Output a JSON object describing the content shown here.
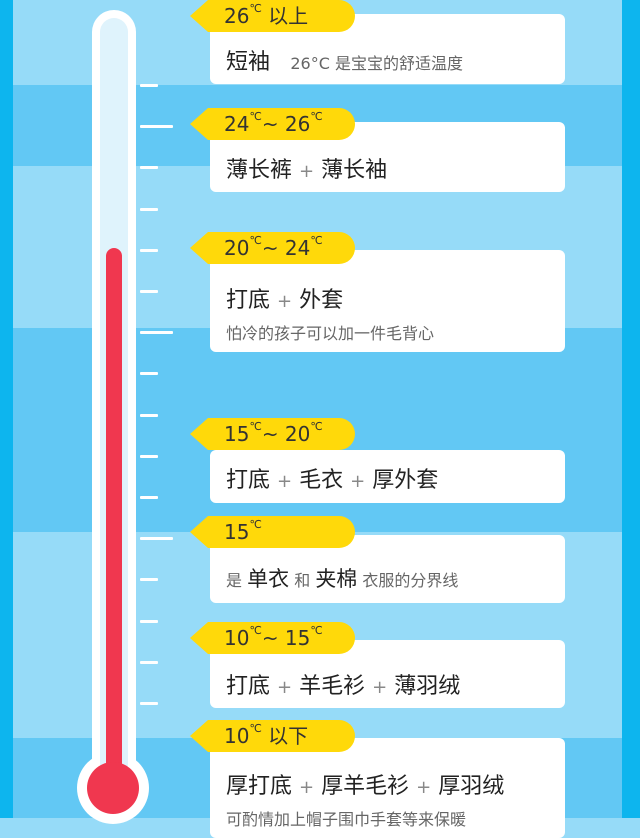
{
  "colors": {
    "band_light": "#96dbf8",
    "band_dark": "#62c8f4",
    "tag": "#ffd90a",
    "mercury": "#f0374f"
  },
  "levels": [
    {
      "range": "26",
      "unit": "℃",
      "suffix": " 以上",
      "main": "短袖",
      "note": "26°C 是宝宝的舒适温度"
    },
    {
      "range": "24",
      "unit": "℃",
      "suffix": "~ 26",
      "unit2": "℃",
      "main_parts": [
        "薄长裤",
        "+",
        "薄长袖"
      ]
    },
    {
      "range": "20",
      "unit": "℃",
      "suffix": "~ 24",
      "unit2": "℃",
      "main_parts": [
        "打底",
        "+",
        "外套"
      ],
      "note": "怕冷的孩子可以加一件毛背心"
    },
    {
      "range": "15",
      "unit": "℃",
      "suffix": "~ 20",
      "unit2": "℃",
      "main_parts": [
        "打底",
        "+",
        "毛衣",
        "+",
        "厚外套"
      ]
    },
    {
      "range": "15",
      "unit": "℃",
      "line_parts": [
        "是",
        "单衣",
        "和",
        "夹棉",
        "衣服的分界线"
      ]
    },
    {
      "range": "10",
      "unit": "℃",
      "suffix": "~ 15",
      "unit2": "℃",
      "main_parts": [
        "打底",
        "+",
        "羊毛衫",
        "+",
        "薄羽绒"
      ]
    },
    {
      "range": "10",
      "unit": "℃",
      "suffix": " 以下",
      "main_parts": [
        "厚打底",
        "+",
        "厚羊毛衫",
        "+",
        "厚羽绒"
      ],
      "note": "可酌情加上帽子围巾手套等来保暖"
    }
  ]
}
